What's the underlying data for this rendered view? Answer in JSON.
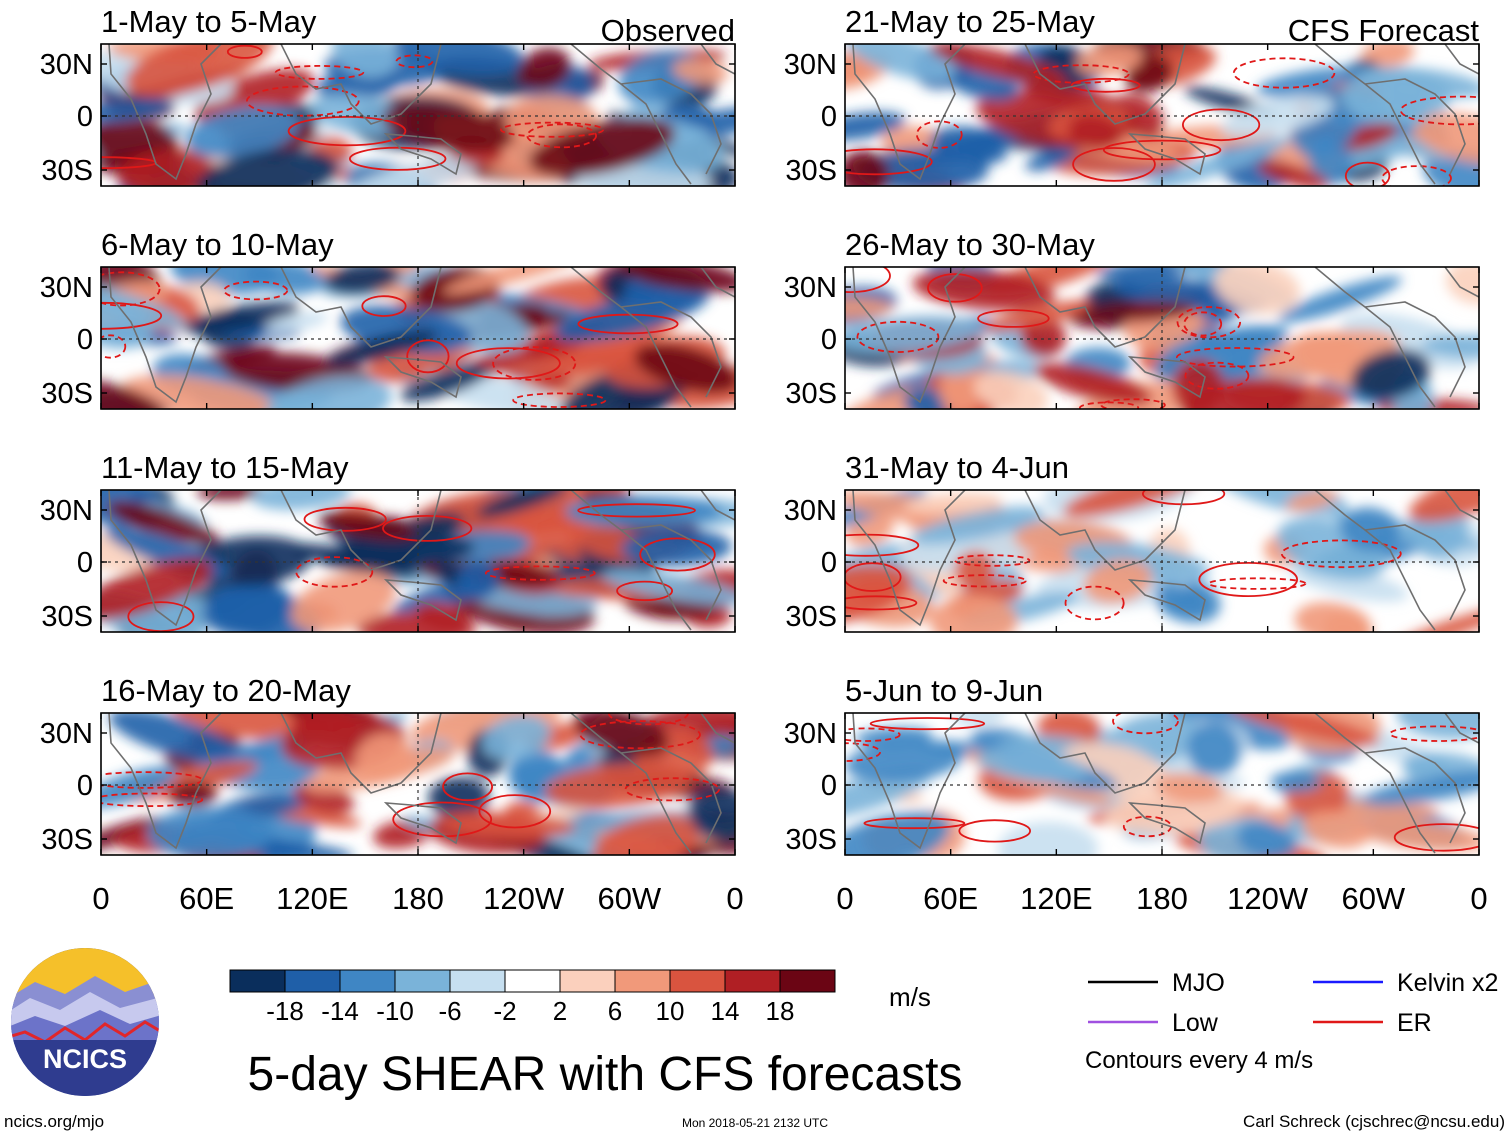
{
  "chart_data": {
    "type": "heatmap",
    "title": "5-day SHEAR with CFS forecasts",
    "variable_units": "m/s",
    "colorbar": {
      "tick_labels": [
        "-18",
        "-14",
        "-10",
        "-6",
        "-2",
        "2",
        "6",
        "10",
        "14",
        "18"
      ],
      "colors": [
        "#0a2e5c",
        "#1f5fa8",
        "#3f86c4",
        "#7ab3d9",
        "#c6dff0",
        "#ffffff",
        "#fbd0bd",
        "#f1997a",
        "#d9543f",
        "#b01f24",
        "#6b0514"
      ]
    },
    "x_tick_labels": [
      "0",
      "60E",
      "120E",
      "180",
      "120W",
      "60W",
      "0"
    ],
    "y_tick_labels": [
      "30N",
      "0",
      "30S"
    ],
    "observed_label": "Observed",
    "forecast_label": "CFS Forecast",
    "panels": [
      {
        "period": "1-May to 5-May",
        "column": "observed"
      },
      {
        "period": "6-May to 10-May",
        "column": "observed"
      },
      {
        "period": "11-May to 15-May",
        "column": "observed"
      },
      {
        "period": "16-May to 20-May",
        "column": "observed"
      },
      {
        "period": "21-May to 25-May",
        "column": "forecast"
      },
      {
        "period": "26-May to 30-May",
        "column": "forecast"
      },
      {
        "period": "31-May to 4-Jun",
        "column": "forecast"
      },
      {
        "period": "5-Jun to 9-Jun",
        "column": "forecast"
      }
    ],
    "contour_legend": [
      {
        "label": "MJO",
        "color": "#000000"
      },
      {
        "label": "Kelvin x2",
        "color": "#1a1aff"
      },
      {
        "label": "Low",
        "color": "#a050e0"
      },
      {
        "label": "ER",
        "color": "#e01818"
      }
    ],
    "contour_note": "Contours every 4 m/s"
  },
  "branding": {
    "logo_text": "NCICS",
    "url": "ncics.org/mjo",
    "timestamp": "Mon 2018-05-21 2132 UTC",
    "author": "Carl Schreck (cjschrec@ncsu.edu)"
  }
}
